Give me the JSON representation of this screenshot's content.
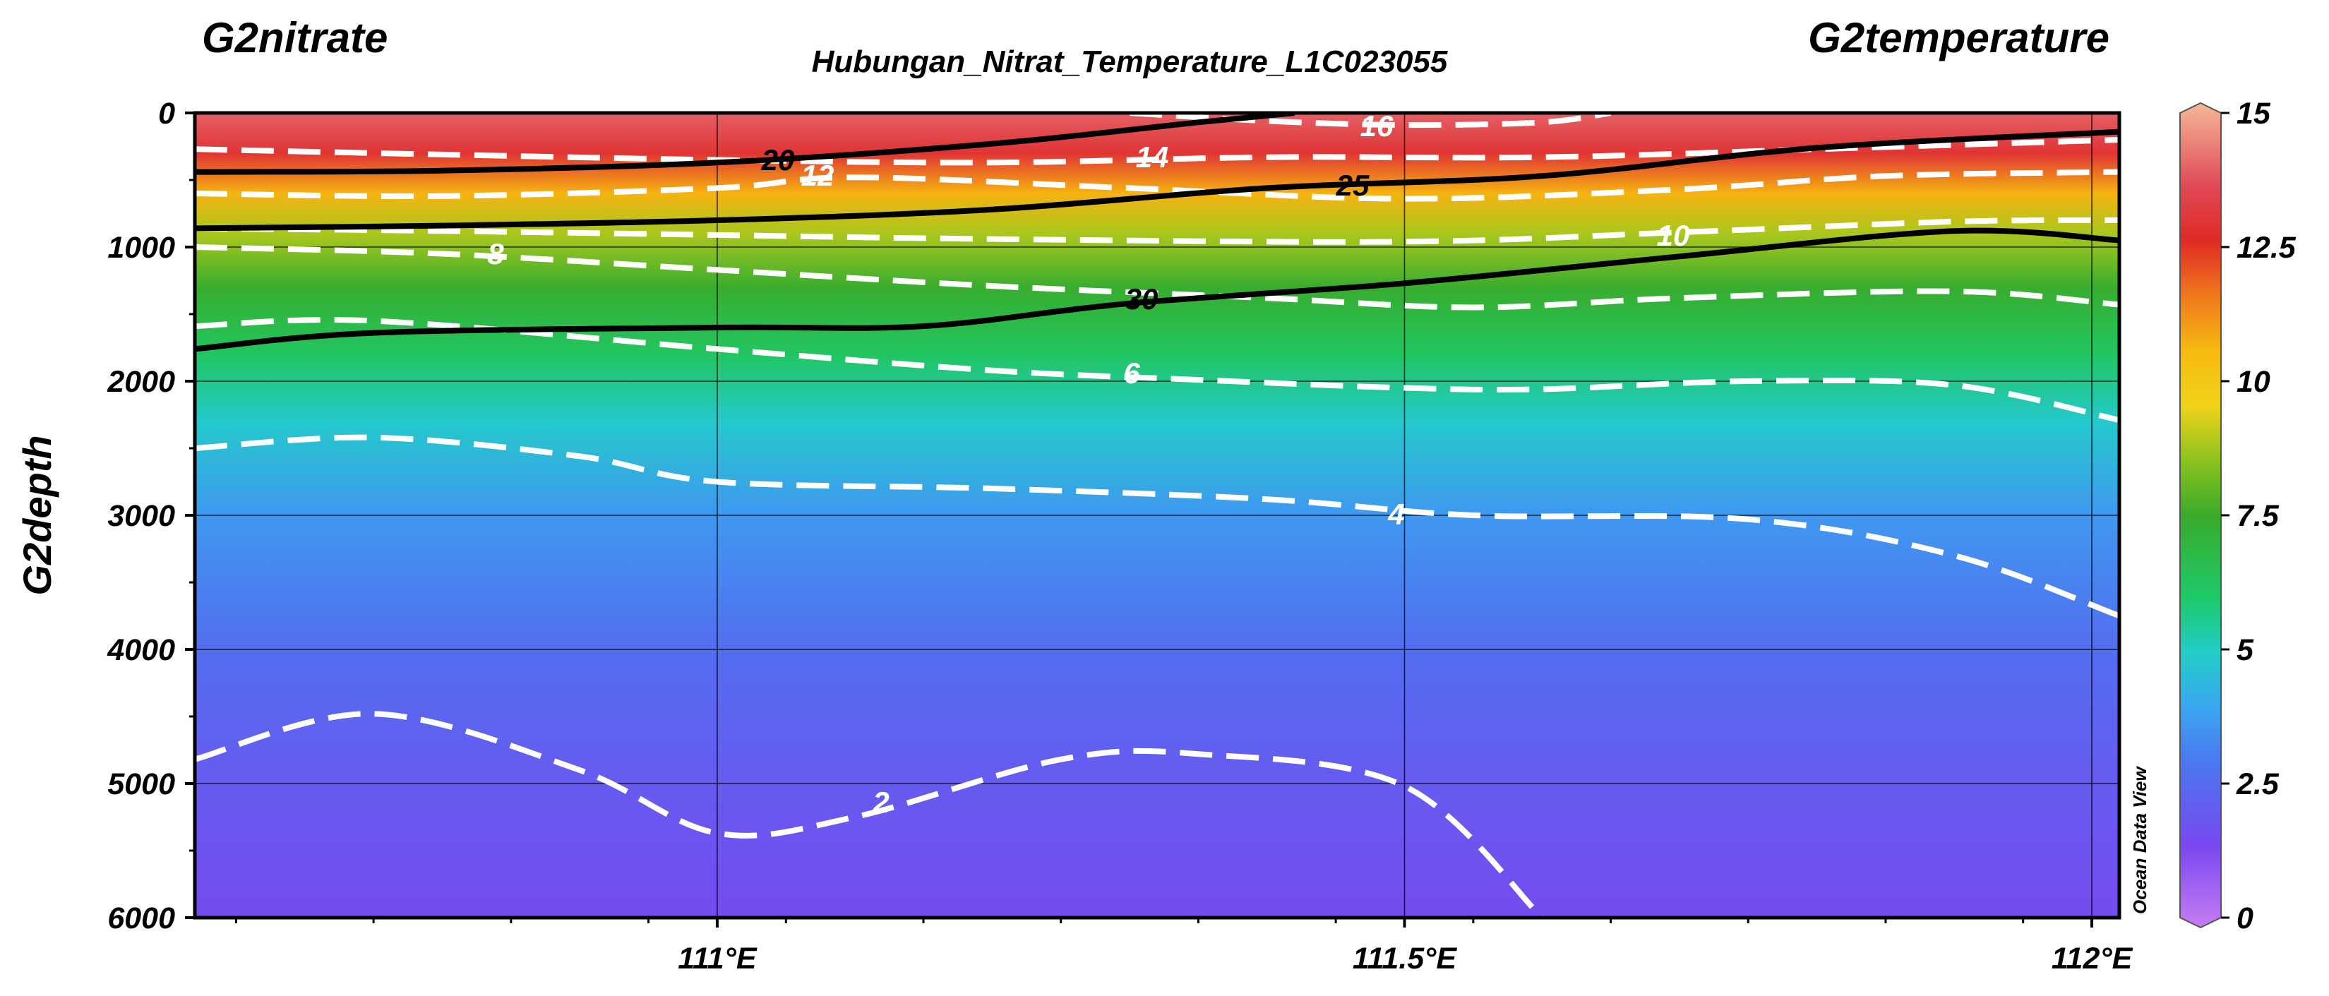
{
  "header": {
    "left_var": "G2nitrate",
    "title": "Hubungan_Nitrat_Temperature_L1C023055",
    "right_var": "G2temperature",
    "watermark": "Ocean Data View"
  },
  "chart_data": {
    "type": "heatmap",
    "title": "Hubungan_Nitrat_Temperature_L1C023055",
    "xlabel": "",
    "ylabel": "G2depth",
    "xlim": [
      110.62,
      112.02
    ],
    "ylim": [
      6000,
      0
    ],
    "y_reversed": true,
    "x_ticks": [
      {
        "value": 111.0,
        "label": "111°E"
      },
      {
        "value": 111.5,
        "label": "111.5°E"
      },
      {
        "value": 112.0,
        "label": "112°E"
      }
    ],
    "y_ticks": [
      {
        "value": 0,
        "label": "0"
      },
      {
        "value": 1000,
        "label": "1000"
      },
      {
        "value": 2000,
        "label": "2000"
      },
      {
        "value": 3000,
        "label": "3000"
      },
      {
        "value": 4000,
        "label": "4000"
      },
      {
        "value": 5000,
        "label": "5000"
      },
      {
        "value": 6000,
        "label": "6000"
      }
    ],
    "grid": true,
    "fill_variable": "G2nitrate",
    "colorbar": {
      "range": [
        0,
        15
      ],
      "ticks": [
        {
          "value": 0,
          "label": "0"
        },
        {
          "value": 2.5,
          "label": "2.5"
        },
        {
          "value": 5,
          "label": "5"
        },
        {
          "value": 7.5,
          "label": "7.5"
        },
        {
          "value": 10,
          "label": "10"
        },
        {
          "value": 12.5,
          "label": "12.5"
        },
        {
          "value": 15,
          "label": "15"
        }
      ],
      "stops": [
        {
          "value": 0,
          "color": "#c77cf2"
        },
        {
          "value": 1.5,
          "color": "#7848f0"
        },
        {
          "value": 3,
          "color": "#4a78f0"
        },
        {
          "value": 4,
          "color": "#3aa6f0"
        },
        {
          "value": 5,
          "color": "#22cdc8"
        },
        {
          "value": 6,
          "color": "#1ec96a"
        },
        {
          "value": 7.5,
          "color": "#3aab2a"
        },
        {
          "value": 8.5,
          "color": "#8cc21e"
        },
        {
          "value": 9.5,
          "color": "#f0d21a"
        },
        {
          "value": 10.5,
          "color": "#f7ba10"
        },
        {
          "value": 11.5,
          "color": "#f0781e"
        },
        {
          "value": 12.5,
          "color": "#e02a24"
        },
        {
          "value": 13.5,
          "color": "#e04a58"
        },
        {
          "value": 15,
          "color": "#f5b898"
        }
      ]
    },
    "fill_profile": [
      {
        "depth": 0,
        "value": 13.8
      },
      {
        "depth": 300,
        "value": 12.8
      },
      {
        "depth": 600,
        "value": 10.6
      },
      {
        "depth": 900,
        "value": 8.8
      },
      {
        "depth": 1300,
        "value": 7.4
      },
      {
        "depth": 1800,
        "value": 6.2
      },
      {
        "depth": 2300,
        "value": 4.9
      },
      {
        "depth": 3000,
        "value": 3.7
      },
      {
        "depth": 4000,
        "value": 2.7
      },
      {
        "depth": 5000,
        "value": 2.1
      },
      {
        "depth": 6000,
        "value": 1.6
      }
    ],
    "temperature_contours": [
      {
        "level": 16,
        "label": "16",
        "points": [
          [
            111.3,
            0
          ],
          [
            111.4,
            60
          ],
          [
            111.5,
            90
          ],
          [
            111.6,
            70
          ],
          [
            111.65,
            0
          ]
        ]
      },
      {
        "level": 14,
        "label": "14",
        "points": [
          [
            110.62,
            270
          ],
          [
            110.8,
            310
          ],
          [
            111.0,
            350
          ],
          [
            111.2,
            370
          ],
          [
            111.4,
            330
          ],
          [
            111.6,
            330
          ],
          [
            111.8,
            270
          ],
          [
            112.02,
            200
          ]
        ]
      },
      {
        "level": 12,
        "label": "12",
        "points": [
          [
            110.62,
            600
          ],
          [
            110.8,
            620
          ],
          [
            111.0,
            560
          ],
          [
            111.1,
            480
          ],
          [
            111.3,
            560
          ],
          [
            111.5,
            640
          ],
          [
            111.7,
            570
          ],
          [
            111.85,
            470
          ],
          [
            112.02,
            440
          ]
        ]
      },
      {
        "level": 10,
        "label": "10",
        "points": [
          [
            110.62,
            860
          ],
          [
            110.8,
            880
          ],
          [
            111.0,
            910
          ],
          [
            111.2,
            940
          ],
          [
            111.5,
            960
          ],
          [
            111.7,
            890
          ],
          [
            111.9,
            810
          ],
          [
            112.02,
            800
          ]
        ]
      },
      {
        "level": 8,
        "label": "8",
        "points": [
          [
            110.62,
            1000
          ],
          [
            110.8,
            1050
          ],
          [
            111.0,
            1170
          ],
          [
            111.2,
            1290
          ],
          [
            111.4,
            1380
          ],
          [
            111.55,
            1450
          ],
          [
            111.7,
            1380
          ],
          [
            111.9,
            1330
          ],
          [
            112.02,
            1430
          ]
        ]
      },
      {
        "level": 6,
        "label": "6",
        "points": [
          [
            110.62,
            1590
          ],
          [
            110.75,
            1550
          ],
          [
            111.0,
            1760
          ],
          [
            111.2,
            1920
          ],
          [
            111.35,
            1990
          ],
          [
            111.5,
            2050
          ],
          [
            111.6,
            2060
          ],
          [
            111.75,
            2000
          ],
          [
            111.9,
            2030
          ],
          [
            112.02,
            2290
          ]
        ]
      },
      {
        "level": 4,
        "label": "4",
        "points": [
          [
            110.62,
            2500
          ],
          [
            110.75,
            2420
          ],
          [
            110.9,
            2560
          ],
          [
            111.0,
            2750
          ],
          [
            111.2,
            2800
          ],
          [
            111.4,
            2880
          ],
          [
            111.55,
            3000
          ],
          [
            111.75,
            3030
          ],
          [
            111.9,
            3300
          ],
          [
            112.02,
            3750
          ]
        ]
      },
      {
        "level": 2,
        "label": "2",
        "points": [
          [
            110.62,
            4820
          ],
          [
            110.75,
            4480
          ],
          [
            110.9,
            4900
          ],
          [
            111.0,
            5370
          ],
          [
            111.1,
            5250
          ],
          [
            111.25,
            4820
          ],
          [
            111.35,
            4780
          ],
          [
            111.5,
            5020
          ],
          [
            111.6,
            6000
          ]
        ]
      }
    ],
    "nitrate_contours": [
      {
        "level": 20,
        "label": "20",
        "points": [
          [
            110.62,
            440
          ],
          [
            110.8,
            430
          ],
          [
            111.0,
            370
          ],
          [
            111.2,
            230
          ],
          [
            111.35,
            70
          ],
          [
            111.42,
            0
          ]
        ]
      },
      {
        "level": 25,
        "label": "25",
        "points": [
          [
            110.62,
            860
          ],
          [
            110.8,
            840
          ],
          [
            111.0,
            800
          ],
          [
            111.2,
            720
          ],
          [
            111.4,
            560
          ],
          [
            111.6,
            470
          ],
          [
            111.8,
            260
          ],
          [
            112.02,
            140
          ]
        ]
      },
      {
        "level": 30,
        "label": "30",
        "points": [
          [
            110.62,
            1760
          ],
          [
            110.75,
            1640
          ],
          [
            111.0,
            1600
          ],
          [
            111.15,
            1590
          ],
          [
            111.3,
            1420
          ],
          [
            111.5,
            1270
          ],
          [
            111.7,
            1070
          ],
          [
            111.9,
            880
          ],
          [
            112.02,
            950
          ]
        ]
      }
    ]
  }
}
